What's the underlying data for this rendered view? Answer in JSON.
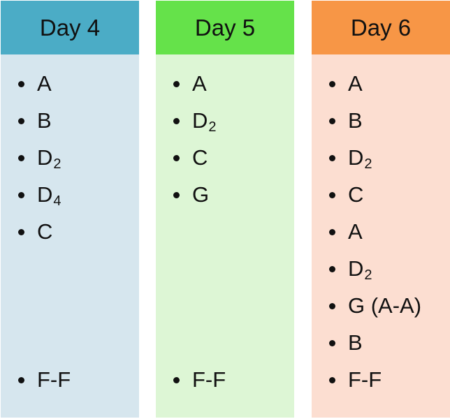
{
  "colors": {
    "day4_header": "#4BACC6",
    "day4_body": "#D6E6EE",
    "day5_header": "#65E24A",
    "day5_body": "#DDF6D5",
    "day6_header": "#F79646",
    "day6_body": "#FCDED1"
  },
  "columns": [
    {
      "title": "Day 4",
      "items": [
        {
          "text": "A",
          "sub": ""
        },
        {
          "text": "B",
          "sub": ""
        },
        {
          "text": "D",
          "sub": "2"
        },
        {
          "text": "D",
          "sub": "4"
        },
        {
          "text": "C",
          "sub": ""
        }
      ],
      "footer": {
        "text": "F-F",
        "sub": ""
      }
    },
    {
      "title": "Day 5",
      "items": [
        {
          "text": "A",
          "sub": ""
        },
        {
          "text": "D",
          "sub": "2"
        },
        {
          "text": "C",
          "sub": ""
        },
        {
          "text": "G",
          "sub": ""
        }
      ],
      "footer": {
        "text": "F-F",
        "sub": ""
      }
    },
    {
      "title": "Day 6",
      "items": [
        {
          "text": "A",
          "sub": ""
        },
        {
          "text": "B",
          "sub": ""
        },
        {
          "text": "D",
          "sub": "2"
        },
        {
          "text": "C",
          "sub": ""
        },
        {
          "text": "A",
          "sub": ""
        },
        {
          "text": "D",
          "sub": "2"
        },
        {
          "text": "G (A-A)",
          "sub": ""
        },
        {
          "text": "B",
          "sub": ""
        }
      ],
      "footer": {
        "text": "F-F",
        "sub": ""
      }
    }
  ]
}
